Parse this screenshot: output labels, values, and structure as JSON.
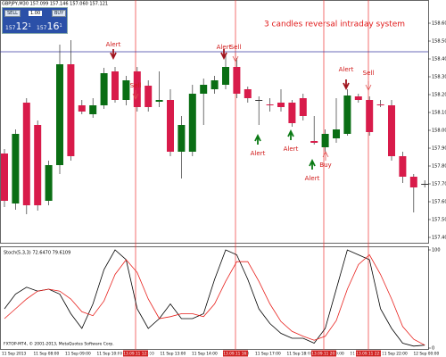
{
  "terminal": {
    "symbol_line": "GBPJPY,M30  157.099 157.146 157.060 157.121",
    "sell": "SELL",
    "buy": "BUY",
    "lot": "1.00",
    "sell_price": "157",
    "sell_big": "12",
    "sell_small": "1",
    "buy_price": "157",
    "buy_big": "16",
    "buy_small": "1"
  },
  "chart_data": [
    {
      "type": "candlestick",
      "title": "3 candles reversal intraday  system",
      "open": [
        157.87,
        157.59,
        158.155,
        158.03,
        157.605,
        157.805,
        158.37,
        158.14,
        158.09,
        158.14,
        158.33,
        158.17,
        158.33,
        158.25,
        158.16,
        158.17,
        157.88,
        157.88,
        158.205,
        158.23,
        158.255,
        158.355,
        158.23,
        158.17,
        158.145,
        158.155,
        158.155,
        158.18,
        157.94,
        157.905,
        157.955,
        157.98,
        158.19,
        158.17,
        158.145,
        158.14,
        157.855,
        157.74,
        157.7
      ],
      "high": [
        157.895,
        158.005,
        158.18,
        158.055,
        157.83,
        158.48,
        158.505,
        158.17,
        158.18,
        158.35,
        158.355,
        158.305,
        158.355,
        158.28,
        158.33,
        158.23,
        158.08,
        158.255,
        158.29,
        158.305,
        158.43,
        158.405,
        158.245,
        158.19,
        158.18,
        158.23,
        158.17,
        158.205,
        158.08,
        158.005,
        158.18,
        158.23,
        158.205,
        158.19,
        158.17,
        158.17,
        157.88,
        157.755,
        157.72
      ],
      "low": [
        157.57,
        157.555,
        157.53,
        157.55,
        157.58,
        157.755,
        157.83,
        158.09,
        158.07,
        158.12,
        158.155,
        158.14,
        158.105,
        158.105,
        158.13,
        157.855,
        157.73,
        157.855,
        158.03,
        158.205,
        158.23,
        158.18,
        158.155,
        158.03,
        158.105,
        158.105,
        158.02,
        158.055,
        157.92,
        157.88,
        157.93,
        157.97,
        158.155,
        157.97,
        158.13,
        157.83,
        157.705,
        157.54,
        157.68
      ],
      "close": [
        157.605,
        157.98,
        157.58,
        157.58,
        157.805,
        158.37,
        157.855,
        158.105,
        158.14,
        158.32,
        158.17,
        158.28,
        158.13,
        158.13,
        158.17,
        157.88,
        158.03,
        158.205,
        158.255,
        158.28,
        158.355,
        158.205,
        158.18,
        158.165,
        158.14,
        158.13,
        158.04,
        158.08,
        157.93,
        157.98,
        158.005,
        158.195,
        158.17,
        157.99,
        158.14,
        157.855,
        157.74,
        157.68,
        157.695
      ],
      "up_color": "#0a6e14",
      "down_color": "#d81b4a",
      "hline": 158.44,
      "ylim": [
        157.37,
        158.7
      ],
      "yticks": [
        {
          "value": 158.6,
          "label": "158.600"
        },
        {
          "value": 158.5,
          "label": "158.500"
        },
        {
          "value": 158.4,
          "label": "158.400"
        },
        {
          "value": 158.3,
          "label": "158.300"
        },
        {
          "value": 158.2,
          "label": "158.200"
        },
        {
          "value": 158.1,
          "label": "158.100"
        },
        {
          "value": 158.0,
          "label": "158.000"
        },
        {
          "value": 157.9,
          "label": "157.900"
        },
        {
          "value": 157.8,
          "label": "157.800"
        },
        {
          "value": 157.7,
          "label": "157.700"
        },
        {
          "value": 157.6,
          "label": "157.600"
        },
        {
          "value": 157.5,
          "label": "157.500"
        },
        {
          "value": 157.4,
          "label": "157.400"
        }
      ],
      "annotations": [
        "Alert",
        "Sell",
        "Alert",
        "Sell",
        "Alert",
        "Alert",
        "Alert",
        "Buy",
        "Alert",
        "Sell"
      ]
    },
    {
      "type": "line",
      "title": "Stoch(5,3,3) 72.6470 79.6109",
      "series": [
        {
          "name": "Main",
          "color": "#000000",
          "values": [
            40,
            55,
            62,
            58,
            60,
            55,
            35,
            20,
            45,
            80,
            100,
            90,
            40,
            20,
            30,
            45,
            30,
            30,
            35,
            70,
            100,
            95,
            70,
            40,
            25,
            15,
            10,
            10,
            5,
            20,
            60,
            100,
            95,
            90,
            40,
            20,
            5,
            2,
            3
          ]
        },
        {
          "name": "Signal",
          "color": "#e8201c",
          "values": [
            30,
            40,
            50,
            58,
            60,
            58,
            50,
            37,
            33,
            48,
            75,
            90,
            77,
            50,
            30,
            32,
            35,
            35,
            32,
            45,
            68,
            88,
            88,
            68,
            45,
            27,
            17,
            12,
            8,
            12,
            28,
            60,
            85,
            95,
            75,
            50,
            22,
            9,
            3
          ]
        }
      ],
      "ylim": [
        0,
        100
      ],
      "yticks": [
        0,
        100
      ],
      "copyright": "FXTOP-MT4, © 2001-2013, MetaQuotes Software Corp.",
      "xlabels": [
        "11 Sep 2013",
        "11 Sep 08:00",
        "11 Sep 09:00",
        "11 Sep 10:00",
        "11 Sep 11:00",
        "11 Sep 13:00",
        "11 Sep 14:00",
        "11 Sep 15:00",
        "11 Sep 17:00",
        "11 Sep 18:00",
        "11 Sep 19:00",
        "11 Sep 21:00",
        "11 Sep 22:00",
        "12 Sep 00:00"
      ],
      "cursor_labels": [
        "2013.09.11 12:00",
        "2013.09.11 16:00",
        "2013.09.11 20:00",
        "2013.09.11 22:00"
      ]
    }
  ]
}
